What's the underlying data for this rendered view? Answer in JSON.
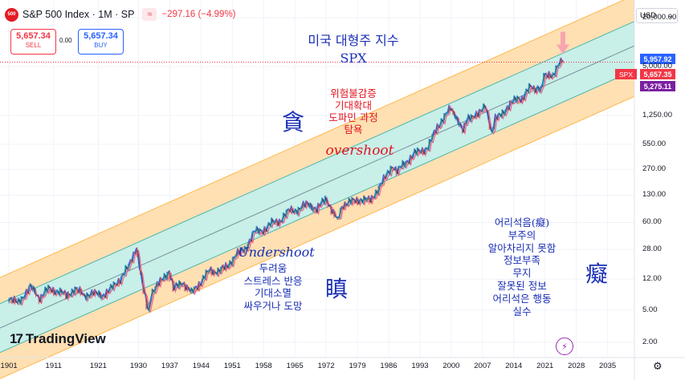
{
  "header": {
    "logo_text": "500",
    "title": "S&P 500 Index · 1M · SP",
    "wave_symbol": "≈",
    "change": "−297.16 (−4.99%)"
  },
  "trade": {
    "sell_price": "5,657.34",
    "sell_label": "SELL",
    "spread": "0.00",
    "buy_price": "5,657.34",
    "buy_label": "BUY"
  },
  "currency": {
    "value": "USD",
    "arrow": "⌄"
  },
  "price_tags": {
    "upper": "5,957.92",
    "last": "5,657.35",
    "lower": "5,275.11",
    "symbol": "SPX"
  },
  "colors": {
    "outer_band": "#ffe0b2",
    "inner_band": "#c8efe8",
    "candle_up": "#26a69a",
    "candle_down": "#ef5350",
    "ma_blue": "#2f63f0",
    "ma_red": "#f06292",
    "tag_upper": "#2962ff",
    "tag_last": "#f23645",
    "tag_lower": "#7b1fa2",
    "annotation_blue": "#1a2fb5",
    "annotation_red": "#e3141e"
  },
  "annotations": {
    "title_line1": "미국 대형주 지수",
    "title_line2": "SPX",
    "greed_char": "貪",
    "greed_lines": [
      "위험불감증",
      "기대확대",
      "도파민 과정",
      "탐욕"
    ],
    "overshoot": "overshoot",
    "undershoot": "Undershoot",
    "fear_lines": [
      "두려움",
      "스트레스 반응",
      "기대소멸",
      "싸우거나 도망"
    ],
    "anger_char": "瞋",
    "ignorance_lines": [
      "어리석음(癡)",
      "부주의",
      "알아차리지 못함",
      "정보부족",
      "무지",
      "잘못된 정보",
      "어리석은 행동",
      "실수"
    ],
    "ignorance_char": "癡"
  },
  "branding": {
    "name": "TradingView",
    "mark": "17"
  },
  "chart_data": {
    "type": "line",
    "title": "S&P 500 Index · 1M · SP",
    "y_scale": "log",
    "ylim": [
      1.3,
      33000
    ],
    "xlim": [
      1899,
      2041
    ],
    "x_ticks": [
      "1901",
      "1911",
      "1921",
      "1930",
      "1937",
      "1944",
      "1951",
      "1958",
      "1965",
      "1972",
      "1979",
      "1986",
      "1993",
      "2000",
      "2007",
      "2014",
      "2021",
      "2028",
      "2035"
    ],
    "y_ticks": [
      "20,000.00",
      "5,000.00",
      "1,250.00",
      "550.00",
      "270.00",
      "130.00",
      "60.00",
      "28.00",
      "12.00",
      "5.00",
      "2.00"
    ],
    "last_price": 5657.35,
    "channel": {
      "center_line": [
        {
          "x": 1899,
          "y": 3.0
        },
        {
          "x": 2041,
          "y": 9000
        }
      ],
      "inner_band_ratio": 2.0,
      "outer_band_ratio": 4.2
    },
    "series": [
      {
        "x": [
          1901,
          1903,
          1906,
          1908,
          1910,
          1912,
          1914,
          1916,
          1918,
          1920,
          1922,
          1924,
          1926,
          1928,
          1929.7,
          1931,
          1932.4,
          1933,
          1935,
          1937,
          1938,
          1940,
          1942,
          1944,
          1946,
          1948,
          1950,
          1952,
          1954,
          1956,
          1958,
          1960,
          1962,
          1964,
          1966,
          1968,
          1970,
          1972,
          1974.8,
          1976,
          1980,
          1982,
          1984,
          1987,
          1988,
          1990,
          1992,
          1995,
          1997,
          2000,
          2002.8,
          2004,
          2007.8,
          2009.2,
          2010,
          2013,
          2015,
          2016,
          2018,
          2020.2,
          2021,
          2022,
          2023,
          2024,
          2025
        ],
        "values": [
          7,
          6,
          9.5,
          7,
          9,
          8.5,
          7.5,
          9,
          7.5,
          8,
          7.5,
          9,
          12,
          17,
          30,
          10,
          4.5,
          8,
          11,
          15,
          9,
          11,
          8,
          11,
          15,
          15,
          17,
          24,
          28,
          45,
          48,
          58,
          64,
          84,
          85,
          103,
          85,
          118,
          65,
          100,
          115,
          110,
          160,
          300,
          250,
          330,
          420,
          500,
          900,
          1500,
          850,
          1150,
          1550,
          700,
          1100,
          1600,
          2050,
          2000,
          2800,
          2500,
          3700,
          3900,
          4000,
          5000,
          5700
        ]
      }
    ]
  }
}
